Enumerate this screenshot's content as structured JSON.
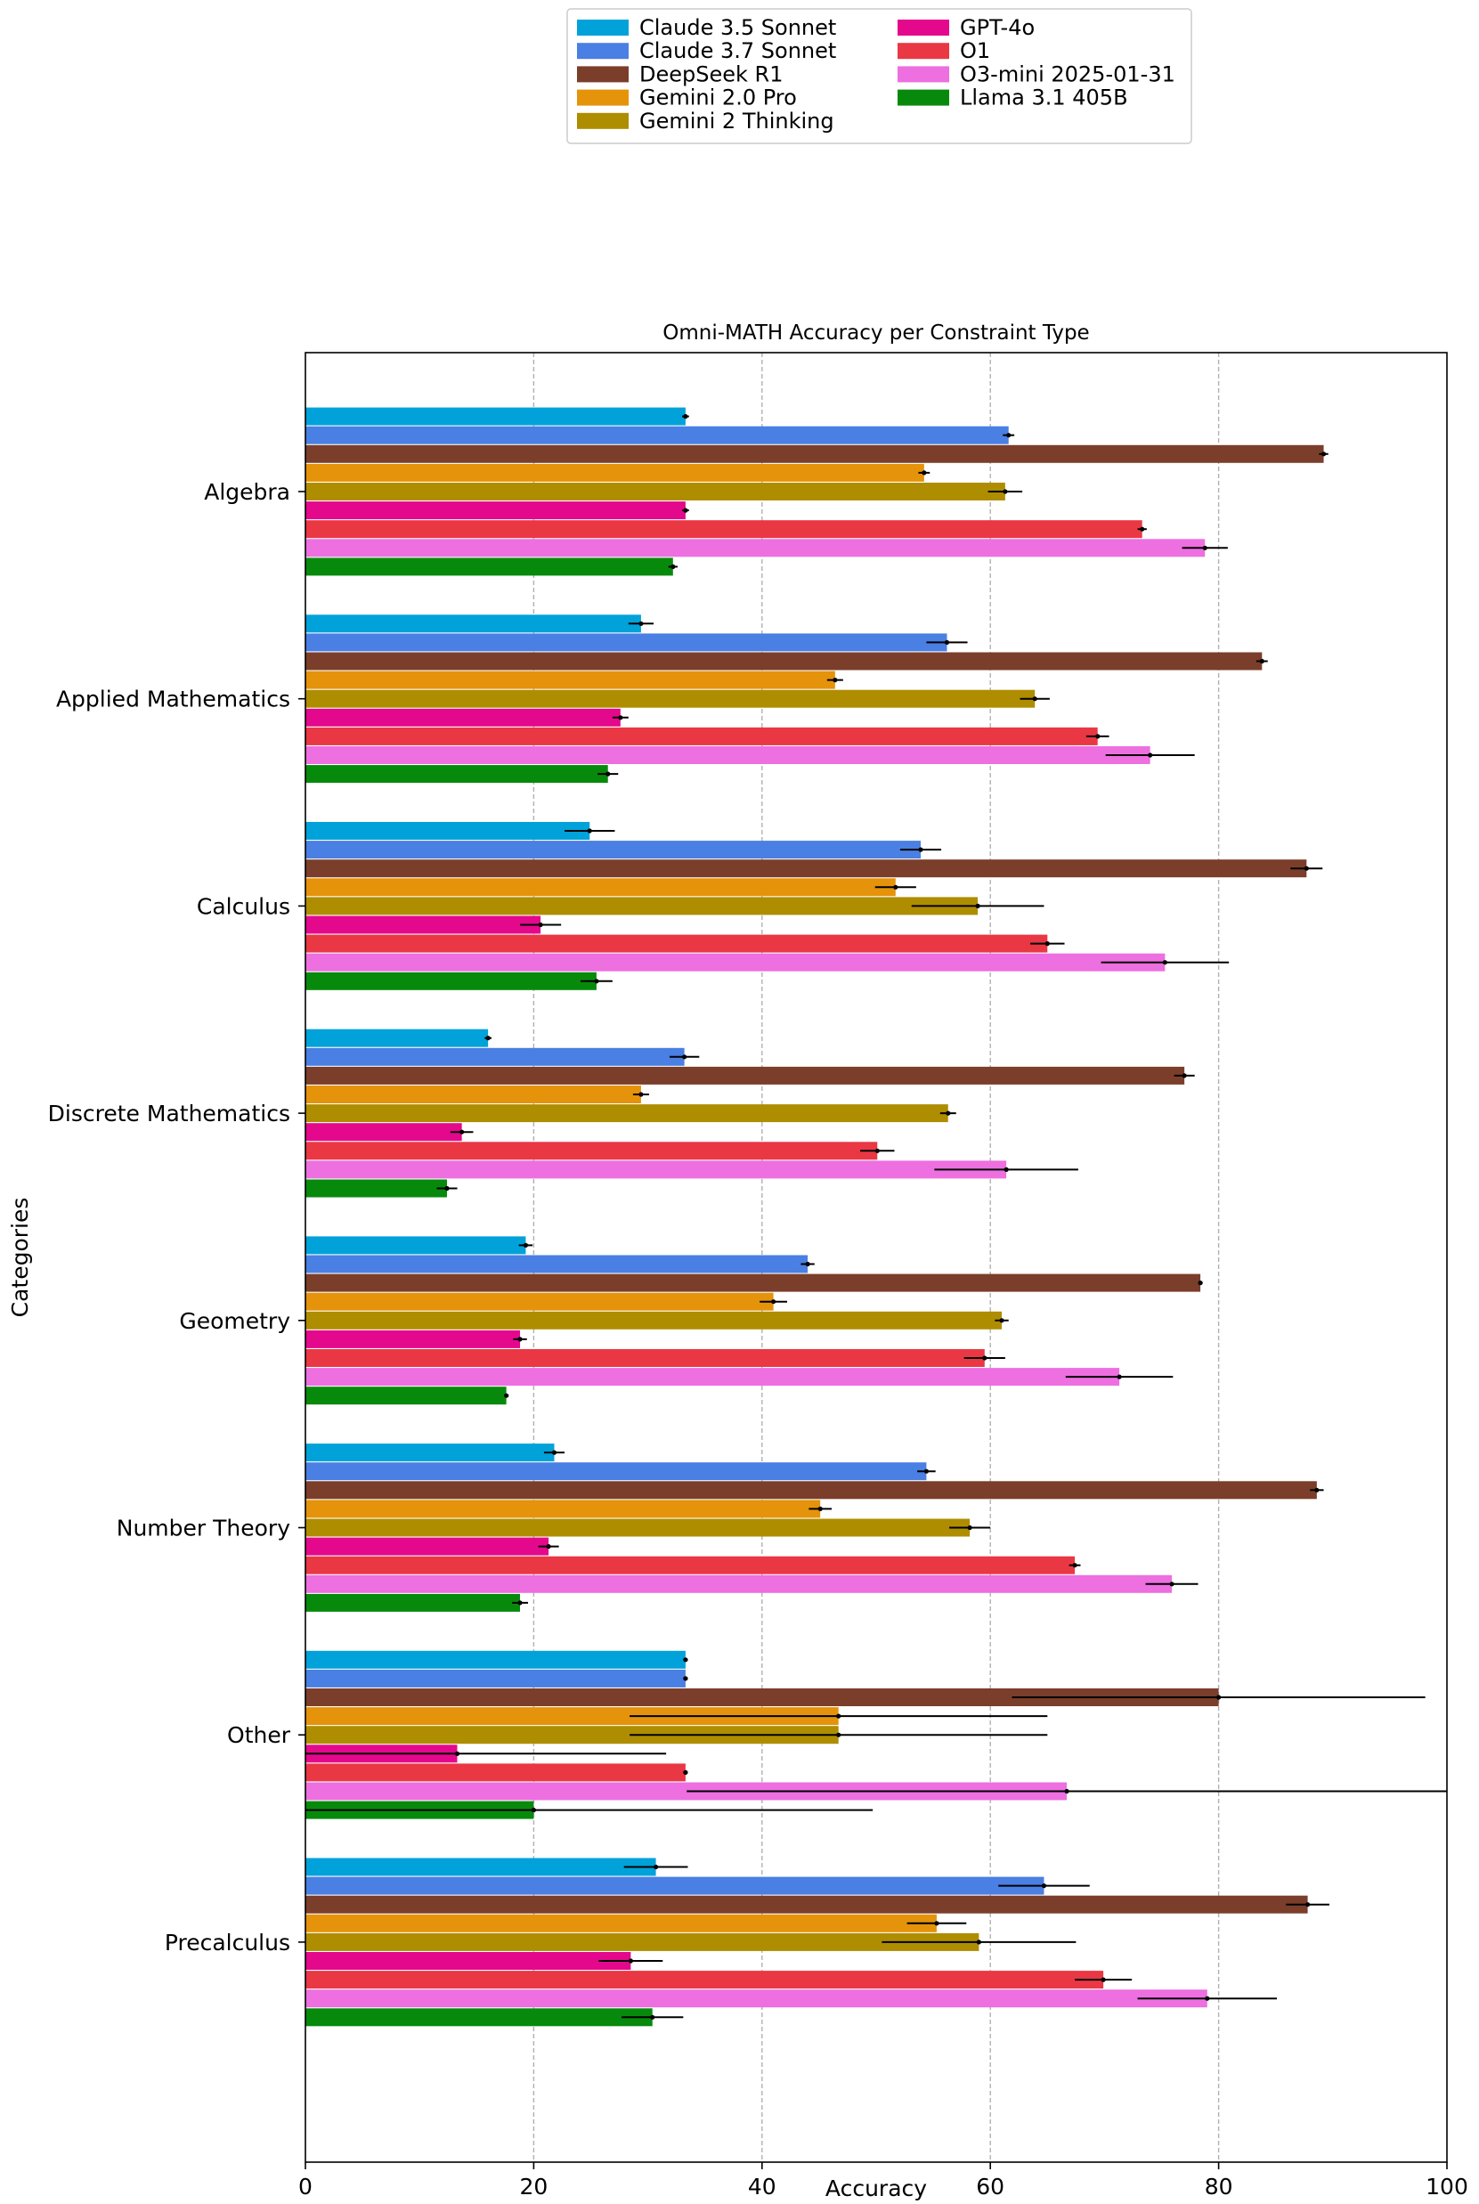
{
  "chart_data": {
    "type": "bar",
    "orientation": "horizontal",
    "title": "Omni-MATH Accuracy per Constraint Type",
    "xlabel": "Accuracy",
    "ylabel": "Categories",
    "xlim": [
      0,
      100
    ],
    "xticks": [
      0,
      20,
      40,
      60,
      80,
      100
    ],
    "grid": "x-dashed",
    "legend_position": "top-center",
    "categories": [
      "Algebra",
      "Applied Mathematics",
      "Calculus",
      "Discrete Mathematics",
      "Geometry",
      "Number Theory",
      "Other",
      "Precalculus"
    ],
    "series": [
      {
        "name": "Claude 3.5 Sonnet",
        "color": "#00a2d9",
        "values": [
          33.3,
          29.4,
          24.9,
          16.0,
          19.3,
          21.8,
          33.3,
          30.7
        ],
        "errors": [
          0.3,
          1.1,
          2.2,
          0.3,
          0.6,
          0.9,
          0.2,
          2.8
        ]
      },
      {
        "name": "Claude 3.7 Sonnet",
        "color": "#4a7fe3",
        "values": [
          61.6,
          56.2,
          53.9,
          33.2,
          44.0,
          54.4,
          33.3,
          64.7
        ],
        "errors": [
          0.5,
          1.8,
          1.8,
          1.3,
          0.6,
          0.8,
          0.2,
          4.0
        ]
      },
      {
        "name": "DeepSeek R1",
        "color": "#7b3e2b",
        "values": [
          89.2,
          83.8,
          87.7,
          77.0,
          78.4,
          88.6,
          80.0,
          87.8
        ],
        "errors": [
          0.4,
          0.5,
          1.4,
          0.9,
          0.2,
          0.6,
          18.1,
          1.9
        ]
      },
      {
        "name": "Gemini 2.0 Pro",
        "color": "#e5930a",
        "values": [
          54.2,
          46.4,
          51.7,
          29.4,
          41.0,
          45.1,
          46.7,
          55.3
        ],
        "errors": [
          0.5,
          0.7,
          1.8,
          0.7,
          1.2,
          1.0,
          18.3,
          2.6
        ]
      },
      {
        "name": "Gemini 2 Thinking",
        "color": "#af8d00",
        "values": [
          61.3,
          63.9,
          58.9,
          56.3,
          61.0,
          58.2,
          46.7,
          59.0
        ],
        "errors": [
          1.5,
          1.3,
          5.8,
          0.7,
          0.6,
          1.8,
          18.3,
          8.5
        ]
      },
      {
        "name": "GPT-4o",
        "color": "#e4088d",
        "values": [
          33.3,
          27.6,
          20.6,
          13.7,
          18.8,
          21.3,
          13.3,
          28.5
        ],
        "errors": [
          0.3,
          0.7,
          1.8,
          1.0,
          0.6,
          0.9,
          18.3,
          2.8
        ]
      },
      {
        "name": "O1",
        "color": "#ea3744",
        "values": [
          73.3,
          69.4,
          65.0,
          50.1,
          59.5,
          67.4,
          33.3,
          69.9
        ],
        "errors": [
          0.4,
          1.0,
          1.5,
          1.5,
          1.8,
          0.5,
          0.2,
          2.5
        ]
      },
      {
        "name": "O3-mini 2025-01-31",
        "color": "#ed6fe0",
        "values": [
          78.8,
          74.0,
          75.3,
          61.4,
          71.3,
          75.9,
          66.7,
          79.0
        ],
        "errors": [
          2.0,
          3.9,
          5.6,
          6.3,
          4.7,
          2.3,
          33.3,
          6.1
        ]
      },
      {
        "name": "Llama 3.1 405B",
        "color": "#078a0c",
        "values": [
          32.2,
          26.5,
          25.5,
          12.4,
          17.6,
          18.8,
          20.0,
          30.4
        ],
        "errors": [
          0.4,
          0.9,
          1.4,
          0.9,
          0.2,
          0.7,
          29.7,
          2.7
        ]
      }
    ]
  }
}
